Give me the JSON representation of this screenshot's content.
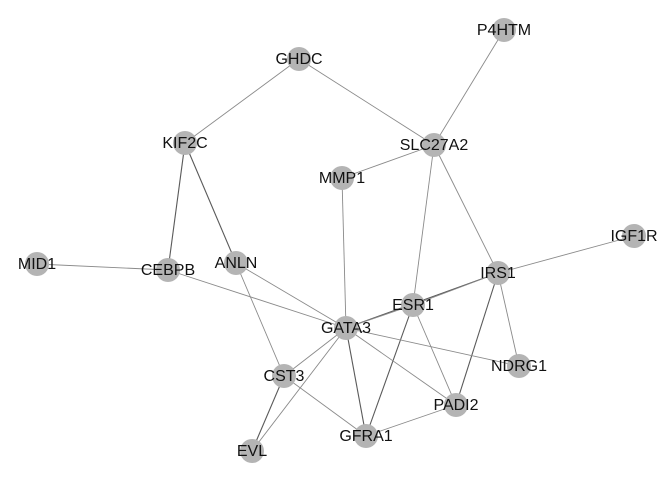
{
  "network": {
    "nodes": [
      {
        "id": "GHDC"
      },
      {
        "id": "P4HTM"
      },
      {
        "id": "KIF2C"
      },
      {
        "id": "SLC27A2"
      },
      {
        "id": "MMP1"
      },
      {
        "id": "MID1"
      },
      {
        "id": "CEBPB"
      },
      {
        "id": "ANLN"
      },
      {
        "id": "IGF1R"
      },
      {
        "id": "IRS1"
      },
      {
        "id": "ESR1"
      },
      {
        "id": "GATA3"
      },
      {
        "id": "NDRG1"
      },
      {
        "id": "CST3"
      },
      {
        "id": "PADI2"
      },
      {
        "id": "GFRA1"
      },
      {
        "id": "EVL"
      }
    ],
    "edges": [
      {
        "source": "GHDC",
        "target": "KIF2C"
      },
      {
        "source": "GHDC",
        "target": "SLC27A2"
      },
      {
        "source": "P4HTM",
        "target": "SLC27A2"
      },
      {
        "source": "SLC27A2",
        "target": "MMP1"
      },
      {
        "source": "SLC27A2",
        "target": "ESR1"
      },
      {
        "source": "SLC27A2",
        "target": "IRS1"
      },
      {
        "source": "KIF2C",
        "target": "CEBPB",
        "strong": true
      },
      {
        "source": "KIF2C",
        "target": "ANLN",
        "strong": true
      },
      {
        "source": "MID1",
        "target": "CEBPB"
      },
      {
        "source": "CEBPB",
        "target": "GATA3"
      },
      {
        "source": "MMP1",
        "target": "GATA3"
      },
      {
        "source": "ANLN",
        "target": "GATA3"
      },
      {
        "source": "ANLN",
        "target": "CST3"
      },
      {
        "source": "IGF1R",
        "target": "IRS1"
      },
      {
        "source": "IRS1",
        "target": "GATA3",
        "strong": true
      },
      {
        "source": "IRS1",
        "target": "ESR1"
      },
      {
        "source": "IRS1",
        "target": "NDRG1"
      },
      {
        "source": "IRS1",
        "target": "PADI2",
        "strong": true
      },
      {
        "source": "ESR1",
        "target": "GATA3"
      },
      {
        "source": "ESR1",
        "target": "GFRA1",
        "strong": true
      },
      {
        "source": "ESR1",
        "target": "PADI2"
      },
      {
        "source": "GATA3",
        "target": "NDRG1"
      },
      {
        "source": "GATA3",
        "target": "PADI2"
      },
      {
        "source": "GATA3",
        "target": "GFRA1",
        "strong": true
      },
      {
        "source": "GATA3",
        "target": "CST3"
      },
      {
        "source": "GATA3",
        "target": "EVL"
      },
      {
        "source": "CST3",
        "target": "EVL",
        "strong": true
      },
      {
        "source": "CST3",
        "target": "GFRA1"
      },
      {
        "source": "GFRA1",
        "target": "PADI2"
      }
    ]
  }
}
